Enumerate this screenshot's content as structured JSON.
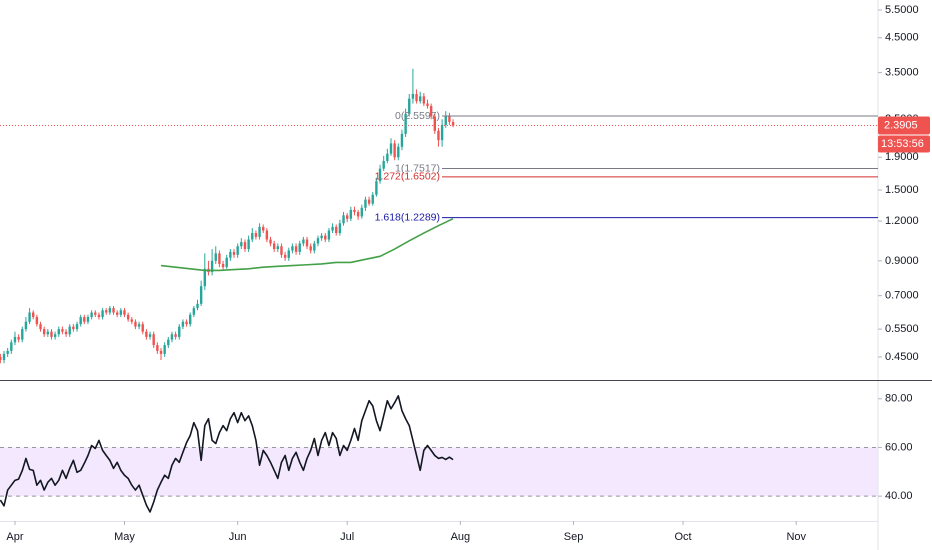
{
  "chart_data": [
    {
      "type": "candlestick",
      "log_scale": true,
      "up_color": "#26a69a",
      "down_color": "#ef5350",
      "xlim": [
        -4.1,
        236.4
      ],
      "ylim": [
        0.381,
        5.91
      ],
      "yticks": [
        {
          "value": 5.5,
          "label": "5.5000"
        },
        {
          "value": 4.5,
          "label": "4.5000"
        },
        {
          "value": 3.5,
          "label": "3.5000"
        },
        {
          "value": 2.5,
          "label": "2.5000"
        },
        {
          "value": 1.9,
          "label": "1.9000"
        },
        {
          "value": 1.5,
          "label": "1.5000"
        },
        {
          "value": 1.2,
          "label": "1.2000"
        },
        {
          "value": 0.9,
          "label": "0.9000"
        },
        {
          "value": 0.7,
          "label": "0.7000"
        },
        {
          "value": 0.55,
          "label": "0.5500"
        },
        {
          "value": 0.45,
          "label": "0.4500"
        }
      ],
      "x": [
        -4,
        -3,
        -2,
        -1,
        0,
        1,
        2,
        3,
        4,
        5,
        6,
        7,
        8,
        9,
        10,
        11,
        12,
        13,
        14,
        15,
        16,
        17,
        18,
        19,
        20,
        21,
        22,
        23,
        24,
        25,
        26,
        27,
        28,
        29,
        30,
        31,
        32,
        33,
        34,
        35,
        36,
        37,
        38,
        39,
        40,
        41,
        42,
        43,
        44,
        45,
        46,
        47,
        48,
        49,
        50,
        51,
        52,
        53,
        54,
        55,
        56,
        57,
        58,
        59,
        60,
        61,
        62,
        63,
        64,
        65,
        66,
        67,
        68,
        69,
        70,
        71,
        72,
        73,
        74,
        75,
        76,
        77,
        78,
        79,
        80,
        81,
        82,
        83,
        84,
        85,
        86,
        87,
        88,
        89,
        90,
        91,
        92,
        93,
        94,
        95,
        96,
        97,
        98,
        99,
        100,
        101,
        102,
        103,
        104,
        105,
        106,
        107,
        108,
        109,
        110,
        111,
        112,
        113,
        114,
        115,
        116,
        117,
        118,
        119,
        120
      ],
      "open": [
        0.45,
        0.44,
        0.46,
        0.47,
        0.5,
        0.52,
        0.51,
        0.55,
        0.58,
        0.62,
        0.6,
        0.57,
        0.55,
        0.53,
        0.54,
        0.52,
        0.53,
        0.55,
        0.54,
        0.53,
        0.56,
        0.55,
        0.57,
        0.6,
        0.58,
        0.6,
        0.62,
        0.61,
        0.6,
        0.63,
        0.62,
        0.64,
        0.62,
        0.61,
        0.63,
        0.61,
        0.59,
        0.58,
        0.56,
        0.57,
        0.54,
        0.52,
        0.53,
        0.49,
        0.47,
        0.46,
        0.49,
        0.51,
        0.53,
        0.52,
        0.56,
        0.58,
        0.57,
        0.61,
        0.64,
        0.66,
        0.75,
        0.85,
        0.83,
        0.9,
        0.95,
        0.88,
        0.86,
        0.92,
        0.96,
        0.94,
        1.0,
        1.03,
        0.98,
        1.05,
        1.1,
        1.07,
        1.15,
        1.12,
        1.05,
        1.02,
        0.98,
        1.0,
        0.94,
        0.92,
        0.97,
        1.0,
        0.96,
        1.02,
        1.05,
        1.0,
        0.97,
        1.02,
        1.06,
        1.08,
        1.05,
        1.12,
        1.15,
        1.1,
        1.18,
        1.25,
        1.22,
        1.3,
        1.28,
        1.24,
        1.32,
        1.4,
        1.36,
        1.45,
        1.6,
        1.75,
        1.85,
        1.95,
        2.1,
        1.9,
        2.05,
        2.25,
        2.6,
        2.9,
        3.0,
        2.85,
        2.95,
        2.8,
        2.75,
        2.55,
        2.3,
        2.15,
        2.4,
        2.55,
        2.45
      ],
      "high": [
        0.46,
        0.47,
        0.48,
        0.51,
        0.54,
        0.53,
        0.56,
        0.6,
        0.64,
        0.63,
        0.61,
        0.58,
        0.56,
        0.55,
        0.55,
        0.54,
        0.56,
        0.56,
        0.55,
        0.57,
        0.57,
        0.58,
        0.61,
        0.61,
        0.61,
        0.63,
        0.63,
        0.62,
        0.64,
        0.64,
        0.65,
        0.65,
        0.63,
        0.64,
        0.64,
        0.62,
        0.6,
        0.59,
        0.58,
        0.58,
        0.55,
        0.54,
        0.54,
        0.5,
        0.48,
        0.5,
        0.52,
        0.54,
        0.54,
        0.57,
        0.59,
        0.59,
        0.62,
        0.65,
        0.68,
        0.78,
        0.95,
        0.9,
        0.98,
        1.0,
        0.97,
        0.9,
        0.94,
        0.98,
        0.98,
        1.02,
        1.06,
        1.05,
        1.08,
        1.14,
        1.12,
        1.18,
        1.17,
        1.14,
        1.07,
        1.04,
        1.02,
        1.02,
        0.96,
        0.99,
        1.02,
        1.02,
        1.04,
        1.07,
        1.07,
        1.02,
        1.04,
        1.08,
        1.1,
        1.1,
        1.14,
        1.18,
        1.17,
        1.21,
        1.28,
        1.27,
        1.33,
        1.33,
        1.3,
        1.35,
        1.43,
        1.43,
        1.48,
        1.64,
        1.8,
        1.92,
        2.02,
        2.18,
        2.15,
        2.1,
        2.32,
        2.7,
        3.0,
        3.6,
        3.1,
        3.05,
        3.02,
        2.88,
        2.8,
        2.6,
        2.35,
        2.5,
        2.65,
        2.62,
        2.5
      ],
      "low": [
        0.43,
        0.43,
        0.45,
        0.46,
        0.49,
        0.5,
        0.5,
        0.54,
        0.57,
        0.59,
        0.56,
        0.54,
        0.52,
        0.52,
        0.51,
        0.51,
        0.52,
        0.53,
        0.52,
        0.52,
        0.54,
        0.54,
        0.56,
        0.57,
        0.57,
        0.59,
        0.6,
        0.59,
        0.59,
        0.61,
        0.61,
        0.61,
        0.6,
        0.6,
        0.6,
        0.58,
        0.57,
        0.55,
        0.55,
        0.53,
        0.51,
        0.51,
        0.48,
        0.46,
        0.44,
        0.45,
        0.48,
        0.5,
        0.51,
        0.51,
        0.55,
        0.56,
        0.56,
        0.6,
        0.63,
        0.65,
        0.73,
        0.81,
        0.81,
        0.88,
        0.86,
        0.84,
        0.85,
        0.9,
        0.92,
        0.92,
        0.98,
        0.96,
        0.96,
        1.03,
        1.05,
        1.05,
        1.1,
        1.03,
        1.0,
        0.96,
        0.96,
        0.92,
        0.9,
        0.9,
        0.95,
        0.94,
        0.94,
        1.0,
        0.98,
        0.95,
        0.95,
        1.0,
        1.04,
        1.03,
        1.03,
        1.1,
        1.08,
        1.08,
        1.16,
        1.19,
        1.2,
        1.25,
        1.21,
        1.22,
        1.29,
        1.34,
        1.34,
        1.43,
        1.57,
        1.72,
        1.82,
        1.92,
        1.86,
        1.86,
        2.0,
        2.2,
        2.55,
        2.8,
        2.8,
        2.8,
        2.75,
        2.7,
        2.5,
        2.25,
        2.05,
        2.05,
        2.35,
        2.4,
        2.36
      ],
      "close": [
        0.44,
        0.46,
        0.47,
        0.5,
        0.52,
        0.51,
        0.55,
        0.58,
        0.62,
        0.6,
        0.57,
        0.55,
        0.53,
        0.54,
        0.52,
        0.53,
        0.55,
        0.54,
        0.53,
        0.56,
        0.55,
        0.57,
        0.6,
        0.58,
        0.6,
        0.62,
        0.61,
        0.6,
        0.63,
        0.62,
        0.64,
        0.62,
        0.61,
        0.63,
        0.61,
        0.59,
        0.58,
        0.56,
        0.57,
        0.54,
        0.52,
        0.53,
        0.49,
        0.47,
        0.46,
        0.49,
        0.51,
        0.53,
        0.52,
        0.56,
        0.58,
        0.57,
        0.61,
        0.64,
        0.66,
        0.75,
        0.85,
        0.83,
        0.9,
        0.95,
        0.88,
        0.86,
        0.92,
        0.96,
        0.94,
        1.0,
        1.03,
        0.98,
        1.05,
        1.1,
        1.07,
        1.15,
        1.12,
        1.05,
        1.02,
        0.98,
        1.0,
        0.94,
        0.92,
        0.97,
        1.0,
        0.96,
        1.02,
        1.05,
        1.0,
        0.97,
        1.02,
        1.06,
        1.08,
        1.05,
        1.12,
        1.15,
        1.1,
        1.18,
        1.25,
        1.22,
        1.3,
        1.28,
        1.24,
        1.32,
        1.4,
        1.36,
        1.45,
        1.6,
        1.75,
        1.85,
        1.95,
        2.1,
        1.9,
        2.05,
        2.25,
        2.6,
        2.9,
        3.0,
        2.85,
        2.95,
        2.8,
        2.75,
        2.55,
        2.3,
        2.15,
        2.4,
        2.55,
        2.45,
        2.39
      ],
      "moving_average": {
        "color": "#43a047",
        "x": [
          40,
          44,
          48,
          52,
          56,
          60,
          64,
          68,
          72,
          76,
          80,
          84,
          88,
          92,
          96,
          100,
          104,
          108,
          112,
          116,
          120
        ],
        "values": [
          0.87,
          0.86,
          0.85,
          0.84,
          0.84,
          0.845,
          0.85,
          0.86,
          0.865,
          0.87,
          0.875,
          0.88,
          0.89,
          0.89,
          0.91,
          0.93,
          0.98,
          1.04,
          1.1,
          1.16,
          1.22
        ]
      },
      "fib_levels": [
        {
          "value": 2.5597,
          "label": "0(2.5597)",
          "color": "#787b86"
        },
        {
          "value": 1.7517,
          "label": "1(1.7517)",
          "color": "#787b86"
        },
        {
          "value": 1.6502,
          "label": "1.272(1.6502)",
          "color": "#d32f2f"
        },
        {
          "value": 1.2289,
          "label": "1.618(1.2289)",
          "color": "#1a1aa6"
        }
      ],
      "last_price": 2.3905,
      "last_price_color": "#ef5350",
      "countdown": "13:53:56"
    },
    {
      "type": "line",
      "color": "#131722",
      "xlim": [
        -4.1,
        236.4
      ],
      "xticks": [
        {
          "value": 0,
          "label": "Apr"
        },
        {
          "value": 30,
          "label": "May"
        },
        {
          "value": 61,
          "label": "Jun"
        },
        {
          "value": 91,
          "label": "Jul"
        },
        {
          "value": 122,
          "label": "Aug"
        },
        {
          "value": 153,
          "label": "Sep"
        },
        {
          "value": 183,
          "label": "Oct"
        },
        {
          "value": 214,
          "label": "Nov"
        }
      ],
      "ylim": [
        30.2,
        86.9
      ],
      "yticks": [
        {
          "value": 80,
          "label": "80.00"
        },
        {
          "value": 60,
          "label": "60.00"
        },
        {
          "value": 40,
          "label": "40.00"
        }
      ],
      "band": [
        40,
        60
      ],
      "band_color": "#f3e8fd",
      "x": [
        -4,
        -3,
        -2,
        -1,
        0,
        1,
        2,
        3,
        4,
        5,
        6,
        7,
        8,
        9,
        10,
        11,
        12,
        13,
        14,
        15,
        16,
        17,
        18,
        19,
        20,
        21,
        22,
        23,
        24,
        25,
        26,
        27,
        28,
        29,
        30,
        31,
        32,
        33,
        34,
        35,
        36,
        37,
        38,
        39,
        40,
        41,
        42,
        43,
        44,
        45,
        46,
        47,
        48,
        49,
        50,
        51,
        52,
        53,
        54,
        55,
        56,
        57,
        58,
        59,
        60,
        61,
        62,
        63,
        64,
        65,
        66,
        67,
        68,
        69,
        70,
        71,
        72,
        73,
        74,
        75,
        76,
        77,
        78,
        79,
        80,
        81,
        82,
        83,
        84,
        85,
        86,
        87,
        88,
        89,
        90,
        91,
        92,
        93,
        94,
        95,
        96,
        97,
        98,
        99,
        100,
        101,
        102,
        103,
        104,
        105,
        106,
        107,
        108,
        109,
        110,
        111,
        112,
        113,
        114,
        115,
        116,
        117,
        118,
        119,
        120
      ],
      "values": [
        38.4,
        36.0,
        42.5,
        44.5,
        46.5,
        47.0,
        50.5,
        55.5,
        51.0,
        50.6,
        44.5,
        46.5,
        42.5,
        45.7,
        47.3,
        44.5,
        46.5,
        50.6,
        47.3,
        51.4,
        54.7,
        49.8,
        50.6,
        53.5,
        56.7,
        60.8,
        59.6,
        62.9,
        58.8,
        56.7,
        54.7,
        51.4,
        53.9,
        50.6,
        48.6,
        47.3,
        44.5,
        42.5,
        44.5,
        40.4,
        36.3,
        33.5,
        37.6,
        42.5,
        45.7,
        48.6,
        47.3,
        52.7,
        55.5,
        53.9,
        58.0,
        62.0,
        64.9,
        70.2,
        66.9,
        54.7,
        69.0,
        71.8,
        62.9,
        61.6,
        66.1,
        69.0,
        66.9,
        71.8,
        74.3,
        70.2,
        74.3,
        71.0,
        73.0,
        69.0,
        62.9,
        52.7,
        58.8,
        56.7,
        53.9,
        50.6,
        47.3,
        53.9,
        56.7,
        50.6,
        55.5,
        58.0,
        53.9,
        50.6,
        55.5,
        58.8,
        63.7,
        56.7,
        62.9,
        66.1,
        60.8,
        66.1,
        63.7,
        56.7,
        60.8,
        58.8,
        62.9,
        67.8,
        62.9,
        71.0,
        75.1,
        79.2,
        77.1,
        71.0,
        66.9,
        73.0,
        79.2,
        75.9,
        78.4,
        81.2,
        75.1,
        71.8,
        69.0,
        62.9,
        56.7,
        50.6,
        58.8,
        60.8,
        58.8,
        56.7,
        55.5,
        55.9,
        55.1,
        56.0,
        55.0
      ]
    }
  ]
}
